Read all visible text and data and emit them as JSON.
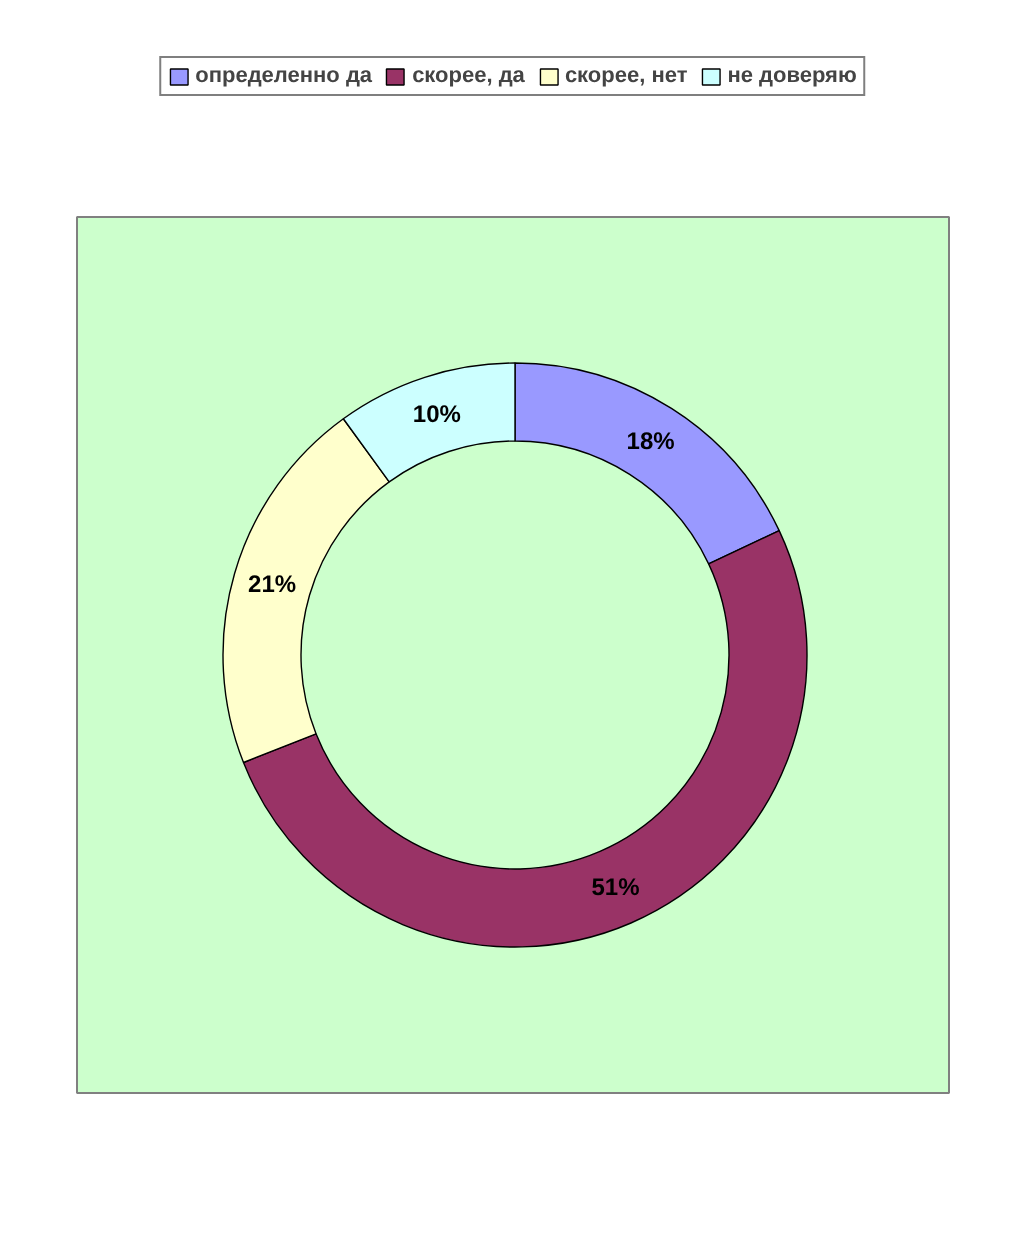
{
  "chart_data": {
    "type": "donut",
    "categories": [
      "определенно да",
      "скорее, да",
      "скорее, нет",
      "не доверяю"
    ],
    "values": [
      18,
      51,
      21,
      10
    ],
    "value_labels": [
      "18%",
      "51%",
      "21%",
      "10%"
    ],
    "colors": [
      "#9999ff",
      "#993366",
      "#ffffcc",
      "#ccffff"
    ],
    "legend": "top"
  }
}
